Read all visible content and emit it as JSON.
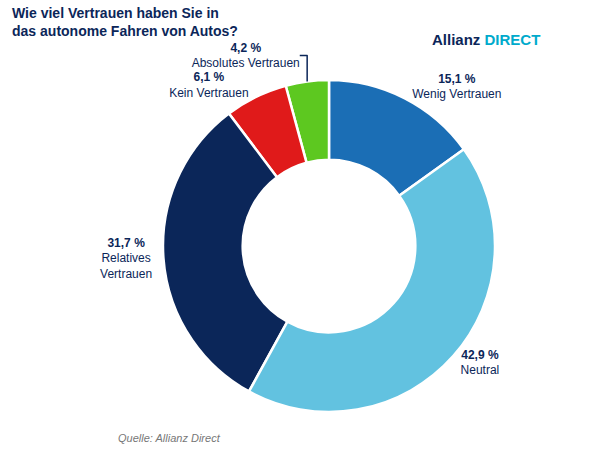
{
  "chart_data": {
    "type": "pie",
    "title": "Wie viel Vertrauen haben Sie in\ndas autonome Fahren von Autos?",
    "categories": [
      "Wenig Vertrauen",
      "Absolutes Vertrauen",
      "Kein Vertrauen",
      "Relatives\nVertrauen",
      "Neutral"
    ],
    "values": [
      15.1,
      4.2,
      6.1,
      31.7,
      42.9
    ],
    "value_labels": [
      "15,1 %",
      "4,2 %",
      "6,1 %",
      "31,7 %",
      "42,9 %"
    ],
    "colors": [
      "#1B6EB5",
      "#5DC820",
      "#E01A1A",
      "#0B2659",
      "#62C2E0"
    ],
    "data_labels": true,
    "annotations": [
      "Quelle: Allianz Direct",
      "Allianz",
      "DIRECT"
    ]
  }
}
